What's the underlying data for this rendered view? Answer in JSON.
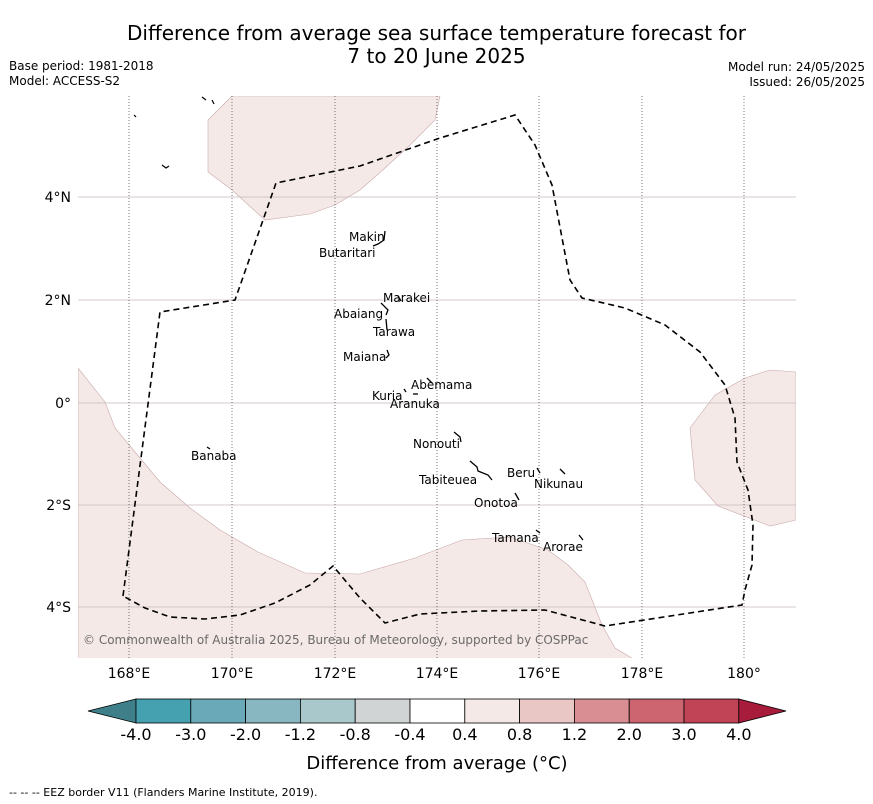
{
  "title_line1": "Difference from average sea surface temperature forecast for",
  "title_line2": "7 to 20 June 2025",
  "base_period": "Base period: 1981-2018",
  "model": "Model: ACCESS-S2",
  "model_run": "Model run: 24/05/2025",
  "issued": "Issued: 26/05/2025",
  "copyright": "© Commonwealth of Australia 2025, Bureau of Meteorology, supported by COSPPac",
  "footer": "--  --  -- EEZ border V11 (Flanders Marine Institute, 2019).",
  "colorbar": {
    "label": "Difference from average (°C)",
    "ticks": [
      "-4.0",
      "-3.0",
      "-2.0",
      "-1.2",
      "-0.8",
      "-0.4",
      "0.4",
      "0.8",
      "1.2",
      "2.0",
      "3.0",
      "4.0"
    ],
    "colors": [
      "#3f7f8a",
      "#45a0b0",
      "#6aaab8",
      "#88b6c1",
      "#a9c8cc",
      "#d1d4d4",
      "#ffffff",
      "#f5e9e7",
      "#e8c7c4",
      "#d98e94",
      "#cc6570",
      "#c14356",
      "#a71c3b"
    ]
  },
  "axes": {
    "x_ticks": [
      "168°E",
      "170°E",
      "172°E",
      "174°E",
      "176°E",
      "178°E",
      "180°"
    ],
    "y_ticks": [
      "4°N",
      "2°N",
      "0°",
      "2°S",
      "4°S"
    ]
  },
  "islands": [
    {
      "name": "Makin"
    },
    {
      "name": "Butaritari"
    },
    {
      "name": "Marakei"
    },
    {
      "name": "Abaiang"
    },
    {
      "name": "Tarawa"
    },
    {
      "name": "Maiana"
    },
    {
      "name": "Abemama"
    },
    {
      "name": "Kuria"
    },
    {
      "name": "Aranuka"
    },
    {
      "name": "Nonouti"
    },
    {
      "name": "Banaba"
    },
    {
      "name": "Beru"
    },
    {
      "name": "Nikunau"
    },
    {
      "name": "Tabiteuea"
    },
    {
      "name": "Onotoa"
    },
    {
      "name": "Tamana"
    },
    {
      "name": "Arorae"
    }
  ]
}
